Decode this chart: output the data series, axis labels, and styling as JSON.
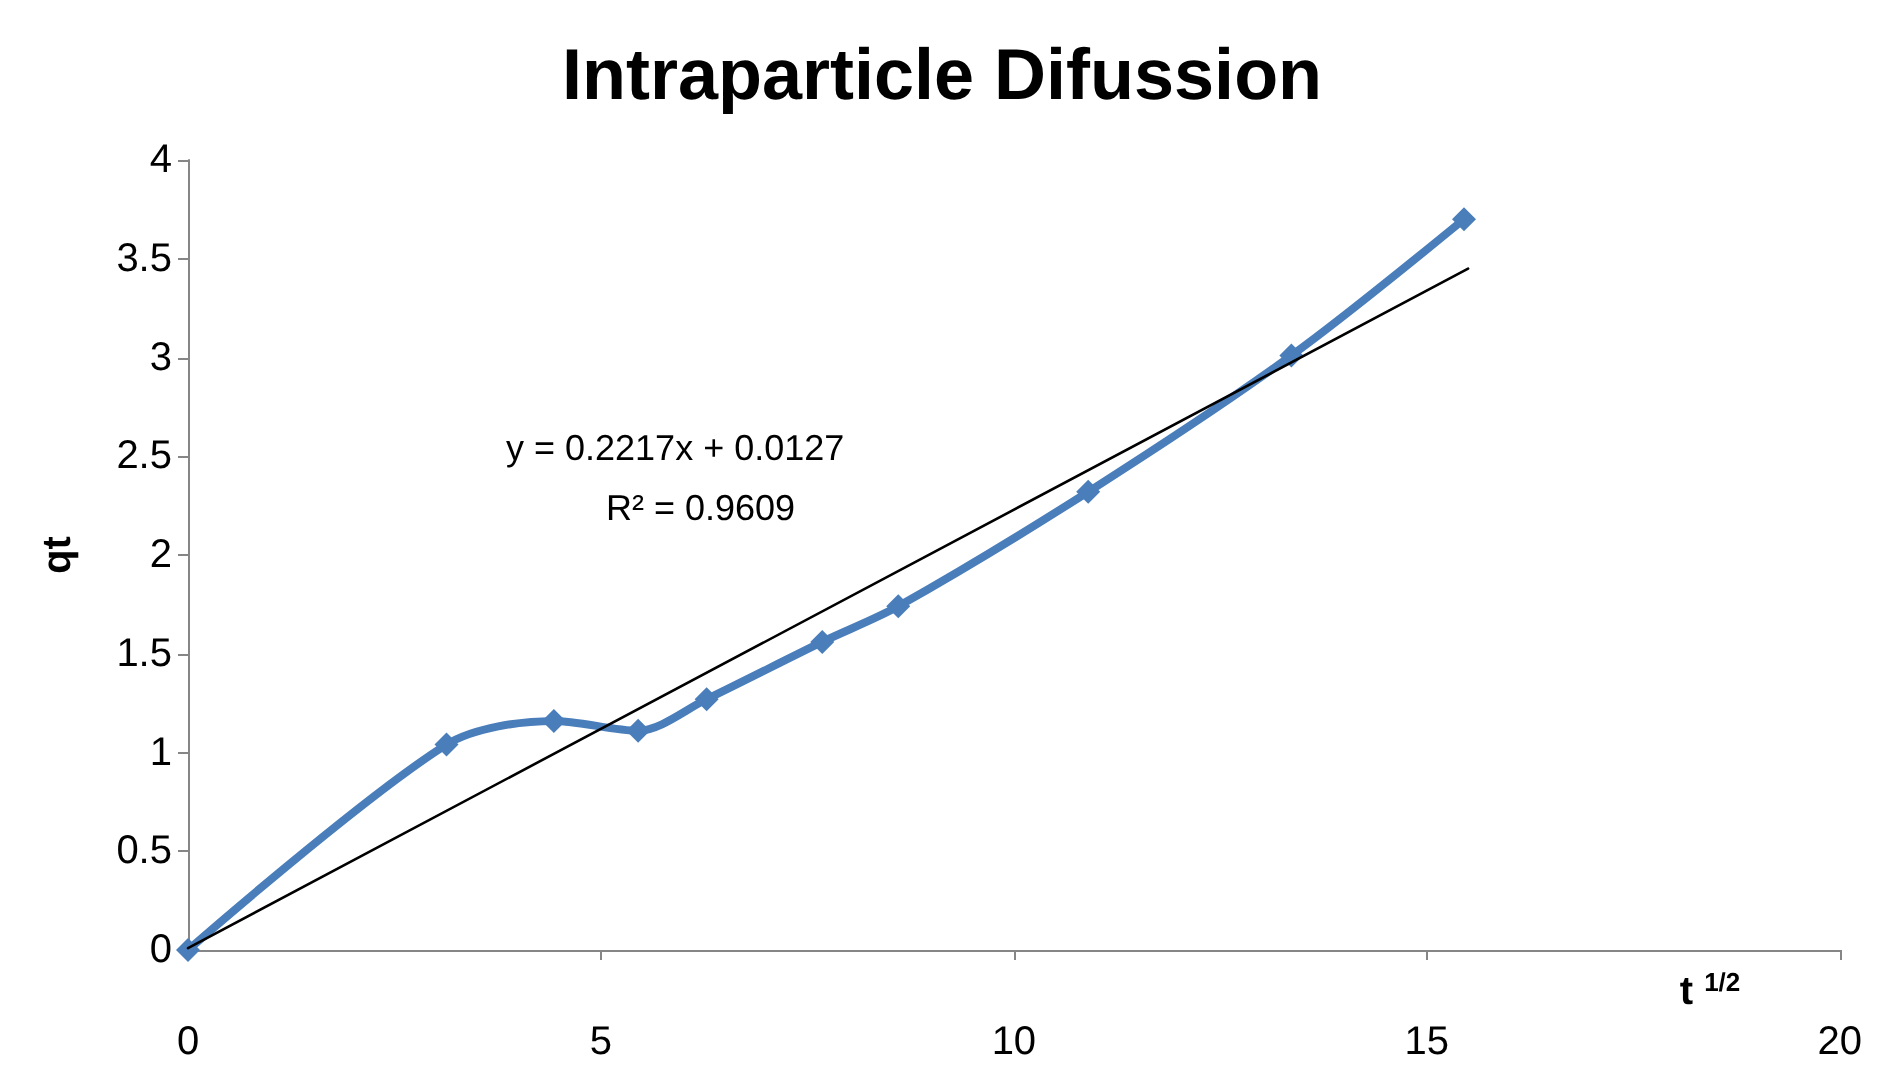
{
  "chart_data": {
    "type": "line",
    "title": "Intraparticle Difussion",
    "xlabel": "t $^{1/2}$",
    "ylabel": "qt",
    "x": [
      0,
      3.13,
      4.43,
      5.45,
      6.28,
      7.68,
      8.6,
      10.9,
      13.36,
      15.45
    ],
    "series": [
      {
        "color": "#4a7ebb",
        "values": [
          0,
          1.04,
          1.16,
          1.11,
          1.27,
          1.56,
          1.74,
          2.32,
          3.01,
          3.7
        ],
        "marker": "diamond"
      },
      {
        "type": "line",
        "color": "#000000",
        "x": [
          0,
          15.5
        ],
        "values": [
          0.01,
          3.45
        ],
        "marker": "none"
      }
    ],
    "annotations": [
      "y = 0.2217x + 0.0127",
      "R² = 0.9609"
    ],
    "xlim": [
      0,
      20
    ],
    "xticks": [
      0,
      5,
      10,
      15,
      20
    ],
    "ylim": [
      0,
      4
    ],
    "yticks": [
      0,
      0.5,
      1,
      1.5,
      2,
      2.5,
      3,
      3.5,
      4
    ],
    "grid": false
  }
}
